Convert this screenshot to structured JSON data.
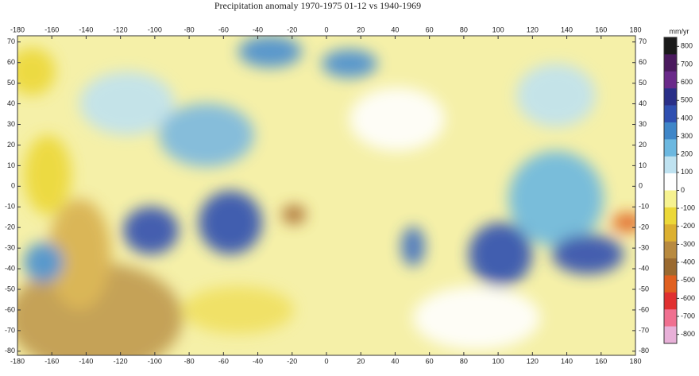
{
  "title": "Precipitation anomaly 1970-1975  01-12 vs 1940-1969",
  "map": {
    "xlim": [
      -180,
      180
    ],
    "ylim": [
      -82,
      73
    ],
    "xticks": [
      -180,
      -160,
      -140,
      -120,
      -100,
      -80,
      -60,
      -40,
      -20,
      0,
      20,
      40,
      60,
      80,
      100,
      120,
      140,
      160,
      180
    ],
    "yticks": [
      70,
      60,
      50,
      40,
      30,
      20,
      10,
      0,
      -10,
      -20,
      -30,
      -40,
      -50,
      -60,
      -70,
      -80
    ]
  },
  "colorbar": {
    "unit": "mm/yr",
    "lim": [
      850,
      -850
    ],
    "ticks": [
      800,
      700,
      600,
      500,
      400,
      300,
      200,
      100,
      0,
      -100,
      -200,
      -300,
      -400,
      -500,
      -600,
      -700,
      -800
    ],
    "colors": [
      "#1a1a1a",
      "#4a1a5e",
      "#6a2a8a",
      "#2a2f88",
      "#2f4fb0",
      "#3f86c8",
      "#6cb8e0",
      "#bfe2f0",
      "#ffffff",
      "#f6f290",
      "#ecd838",
      "#dcb030",
      "#b88a40",
      "#9a6a30",
      "#e06020",
      "#e03030",
      "#f07090",
      "#e8b0d8"
    ]
  }
}
